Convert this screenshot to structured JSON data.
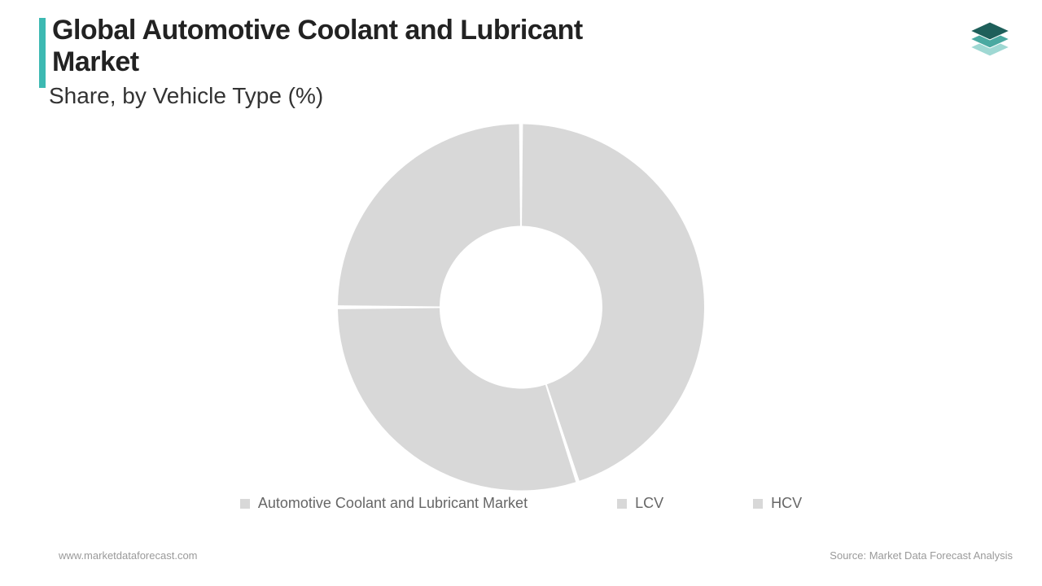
{
  "title": "Global Automotive Coolant and Lubricant Market",
  "subtitle": "Share, by Vehicle Type (%)",
  "footer": {
    "left": "www.marketdataforecast.com",
    "right": "Source: Market Data Forecast Analysis"
  },
  "accent_color": "#3cb9b2",
  "chart": {
    "type": "donut",
    "outer_radius": 225,
    "inner_radius": 100,
    "gap_deg": 1.2,
    "background_color": "#ffffff",
    "slices": [
      {
        "label": "Automotive Coolant and Lubricant Market",
        "value": 45,
        "color": "#d8d8d8"
      },
      {
        "label": "LCV",
        "value": 30,
        "color": "#d8d8d8"
      },
      {
        "label": "HCV",
        "value": 25,
        "color": "#d8d8d8"
      }
    ],
    "legend_fontsize": 18,
    "legend_color": "#666666"
  },
  "logo_colors": {
    "top": "#1e5f5a",
    "mid": "#4aa9a1",
    "bot": "#9fd8d3"
  }
}
